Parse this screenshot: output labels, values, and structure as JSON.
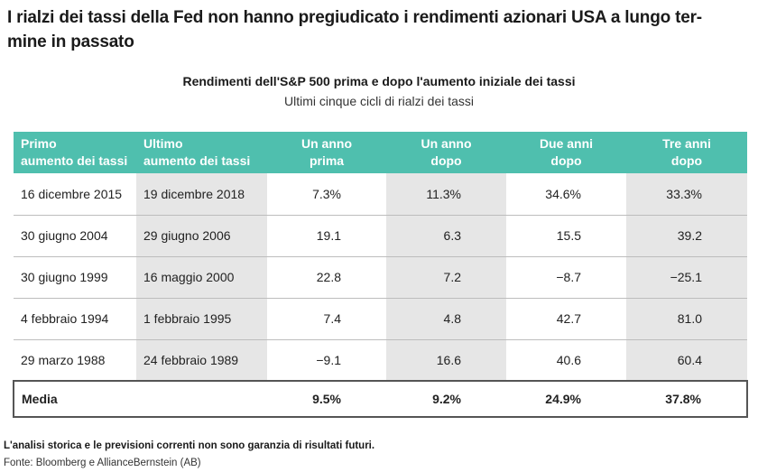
{
  "headline": "I rialzi dei tassi della Fed non hanno pregiudicato i rendimenti azionari USA a lungo termine in passato",
  "headline_line1": "I rialzi dei tassi della Fed non hanno pregiudicato i rendimenti azionari USA a lungo ter-",
  "headline_line2": "mine in passato",
  "table_title": "Rendimenti dell'S&P 500 prima e dopo l'aumento iniziale dei tassi",
  "table_subtitle": "Ultimi cinque cicli di rialzi dei tassi",
  "columns": [
    {
      "line1": "Primo",
      "line2": "aumento dei tassi"
    },
    {
      "line1": "Ultimo",
      "line2": "aumento dei tassi"
    },
    {
      "line1": "Un anno",
      "line2": "prima"
    },
    {
      "line1": "Un anno",
      "line2": "dopo"
    },
    {
      "line1": "Due anni",
      "line2": "dopo"
    },
    {
      "line1": "Tre anni",
      "line2": "dopo"
    }
  ],
  "rows": [
    {
      "first": "16 dicembre 2015",
      "last": "19 dicembre 2018",
      "before1": "7.3%",
      "after1": "11.3%",
      "after2": "34.6%",
      "after3": "33.3%"
    },
    {
      "first": "30 giugno 2004",
      "last": "29 giugno 2006",
      "before1": "19.1",
      "after1": "6.3",
      "after2": "15.5",
      "after3": "39.2"
    },
    {
      "first": "30 giugno 1999",
      "last": "16 maggio 2000",
      "before1": "22.8",
      "after1": "7.2",
      "after2": "−8.7",
      "after3": "−25.1"
    },
    {
      "first": "4 febbraio 1994",
      "last": "1 febbraio 1995",
      "before1": "7.4",
      "after1": "4.8",
      "after2": "42.7",
      "after3": "81.0"
    },
    {
      "first": "29 marzo 1988",
      "last": "24 febbraio 1989",
      "before1": "−9.1",
      "after1": "16.6",
      "after2": "40.6",
      "after3": "60.4"
    }
  ],
  "average": {
    "label": "Media",
    "before1": "9.5%",
    "after1": "9.2%",
    "after2": "24.9%",
    "after3": "37.8%"
  },
  "disclaimer": "L'analisi storica e le previsioni correnti non sono garanzia di risultati futuri.",
  "source": "Fonte: Bloomberg e AllianceBernstein (AB)",
  "colors": {
    "header_bg": "#4fbfae",
    "shade": "#e6e6e6"
  }
}
